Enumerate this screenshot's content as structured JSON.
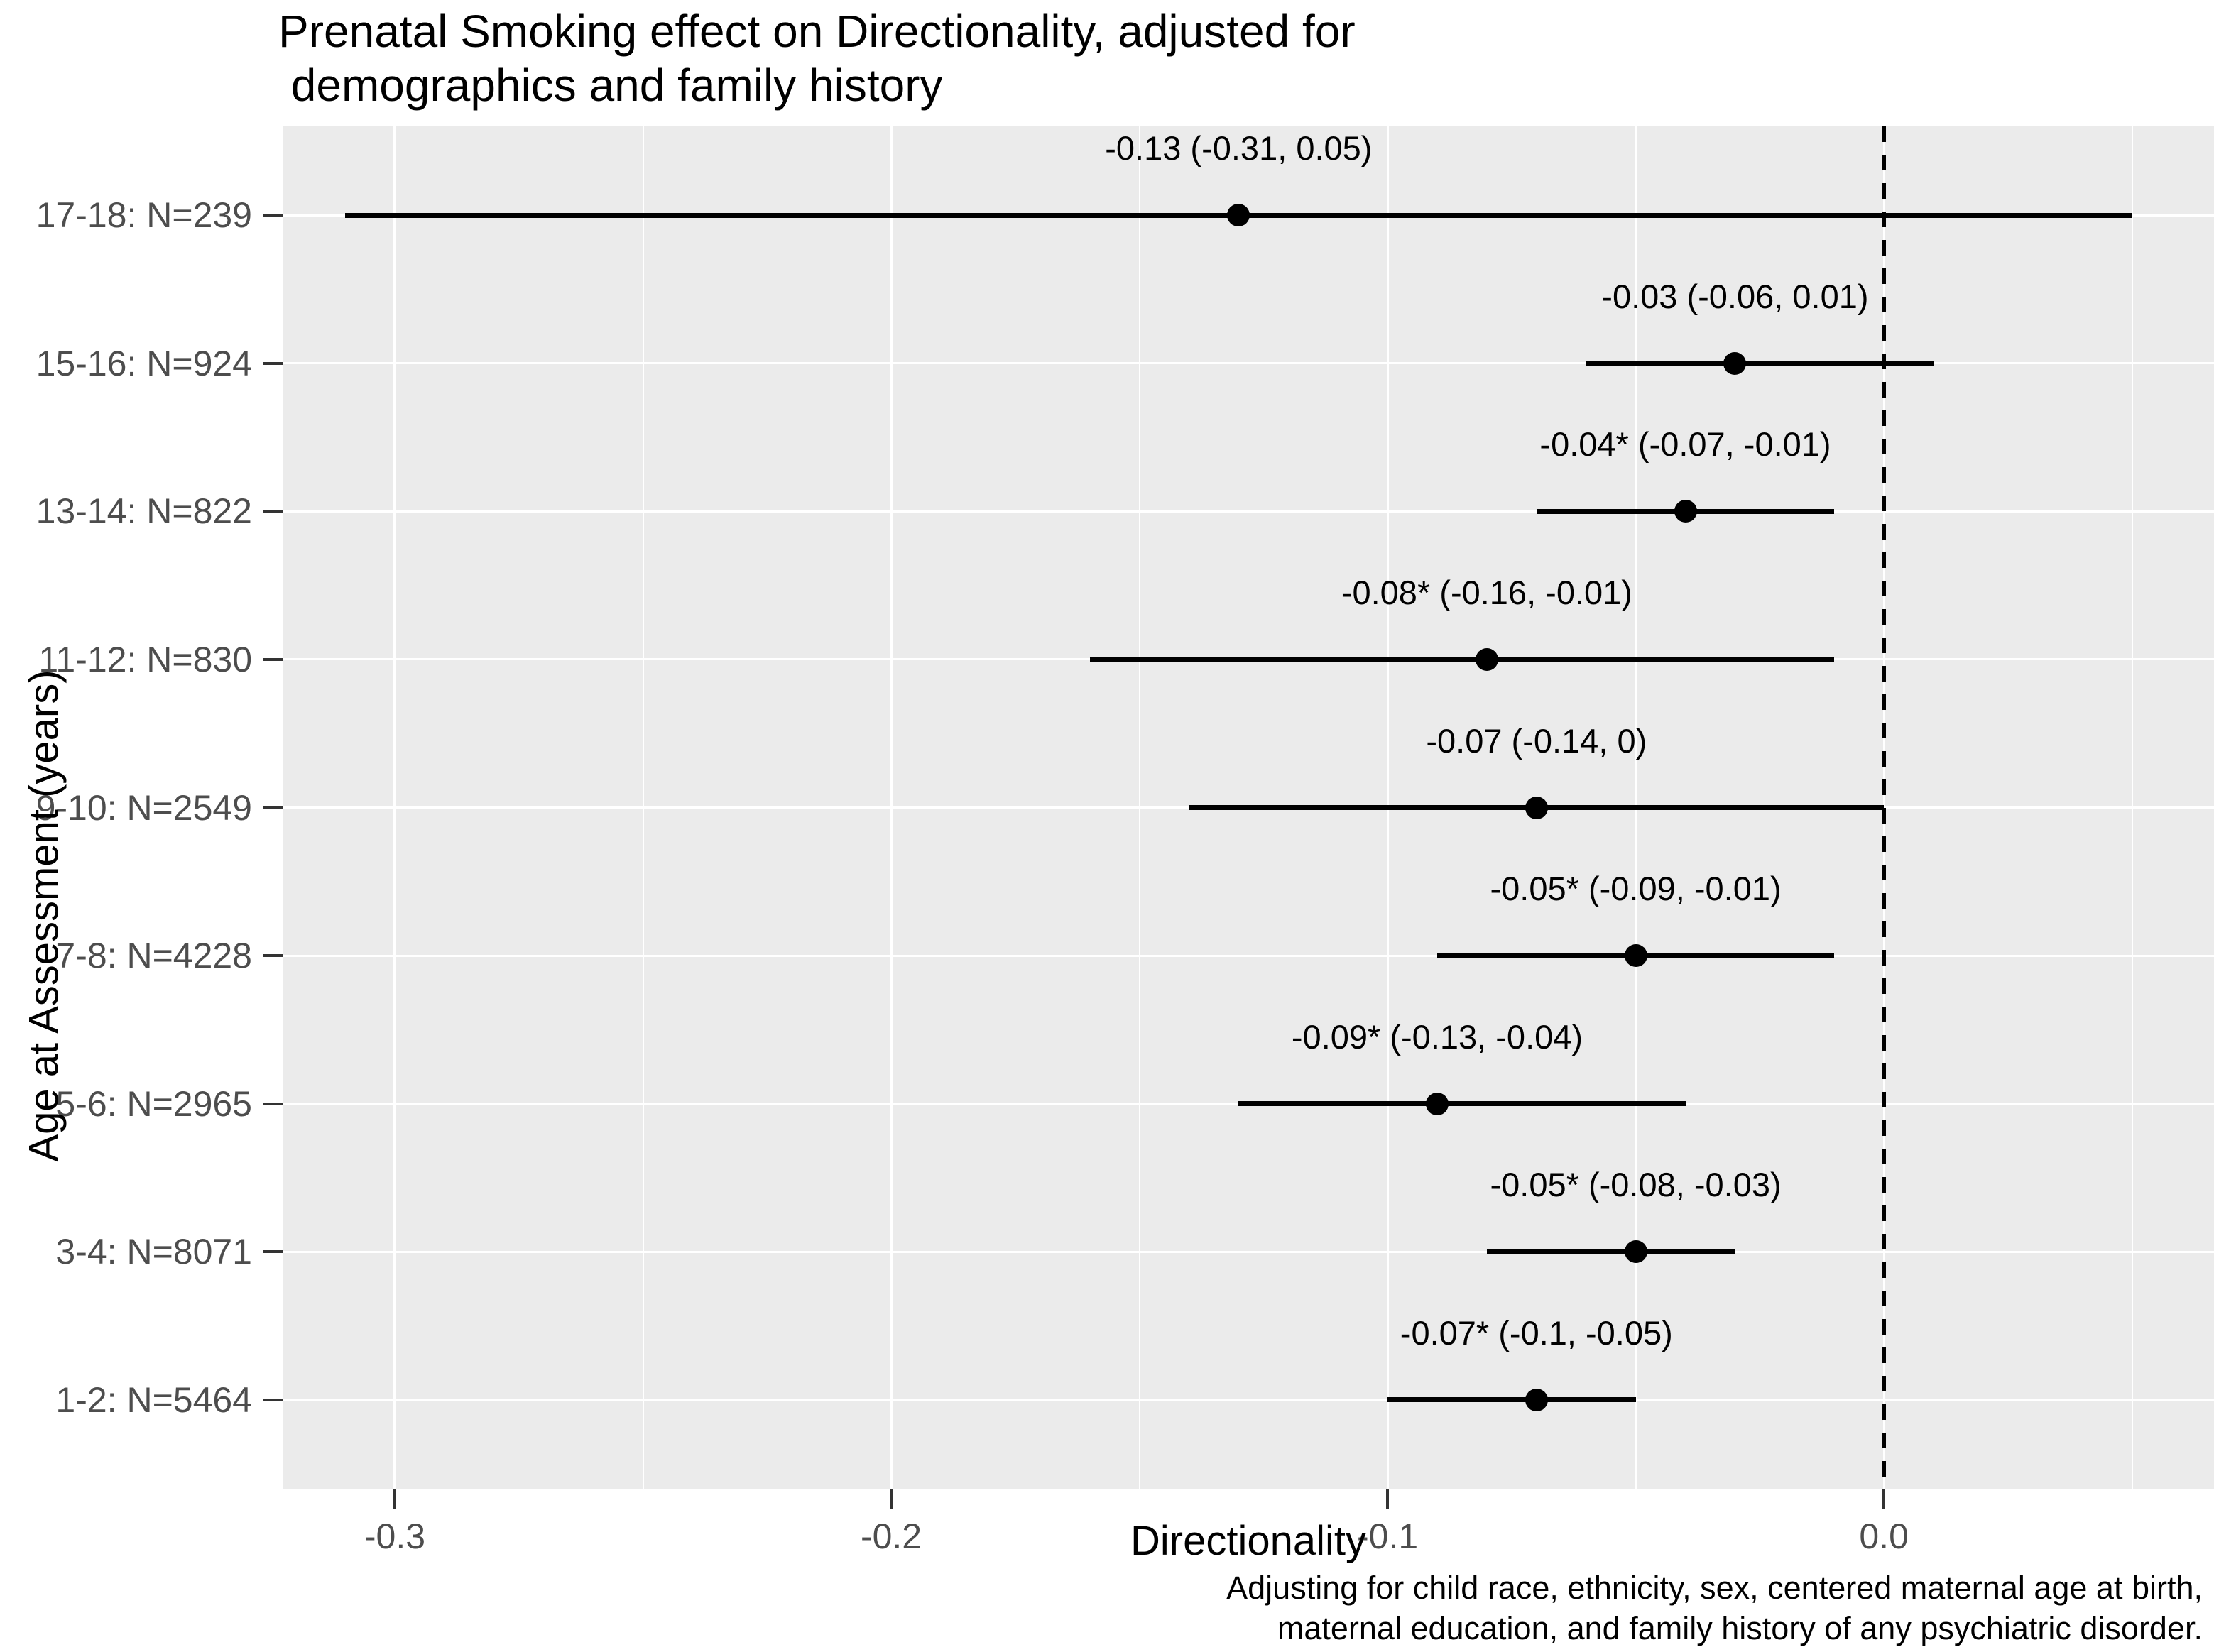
{
  "chart_data": {
    "type": "scatter",
    "subtype": "forest-plot-with-error-bars",
    "title_lines": [
      "Prenatal Smoking effect on Directionality, adjusted for",
      " demographics and family history"
    ],
    "xlabel": "Directionality",
    "ylabel": "Age at Assessment (years)",
    "caption_lines": [
      "Adjusting for child race, ethnicity, sex, centered maternal age at birth,",
      "maternal education, and family history of any psychiatric disorder."
    ],
    "xlim": [
      -0.3226,
      0.0665
    ],
    "x_ticks": [
      -0.3,
      -0.2,
      -0.1,
      0.0
    ],
    "x_tick_labels": [
      "-0.3",
      "-0.2",
      "-0.1",
      "0.0"
    ],
    "x_minor_ticks": [
      -0.25,
      -0.15,
      -0.05,
      0.05
    ],
    "reference_line_x": 0,
    "grid": "major-and-minor-vertical-white, horizontal-per-category-white",
    "legend": "none",
    "panel_background": "#EBEBEB",
    "gridline_color": "#FFFFFF",
    "point_color": "#000000",
    "axis_text_color": "#4D4D4D",
    "rows": [
      {
        "category": "17-18: N=239",
        "estimate": -0.13,
        "ci_low": -0.31,
        "ci_high": 0.05,
        "label": "-0.13 (-0.31, 0.05)"
      },
      {
        "category": "15-16: N=924",
        "estimate": -0.03,
        "ci_low": -0.06,
        "ci_high": 0.01,
        "label": "-0.03 (-0.06, 0.01)"
      },
      {
        "category": "13-14: N=822",
        "estimate": -0.04,
        "ci_low": -0.07,
        "ci_high": -0.01,
        "label": "-0.04* (-0.07, -0.01)"
      },
      {
        "category": "11-12: N=830",
        "estimate": -0.08,
        "ci_low": -0.16,
        "ci_high": -0.01,
        "label": "-0.08* (-0.16, -0.01)"
      },
      {
        "category": "9-10: N=2549",
        "estimate": -0.07,
        "ci_low": -0.14,
        "ci_high": 0,
        "label": "-0.07 (-0.14, 0)"
      },
      {
        "category": "7-8: N=4228",
        "estimate": -0.05,
        "ci_low": -0.09,
        "ci_high": -0.01,
        "label": "-0.05* (-0.09, -0.01)"
      },
      {
        "category": "5-6: N=2965",
        "estimate": -0.09,
        "ci_low": -0.13,
        "ci_high": -0.04,
        "label": "-0.09* (-0.13, -0.04)"
      },
      {
        "category": "3-4: N=8071",
        "estimate": -0.05,
        "ci_low": -0.08,
        "ci_high": -0.03,
        "label": "-0.05* (-0.08, -0.03)"
      },
      {
        "category": "1-2: N=5464",
        "estimate": -0.07,
        "ci_low": -0.1,
        "ci_high": -0.05,
        "label": "-0.07* (-0.1, -0.05)"
      }
    ]
  }
}
